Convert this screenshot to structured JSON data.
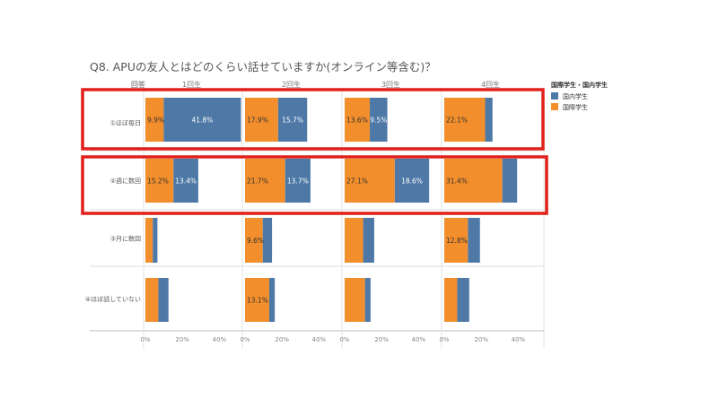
{
  "chart_data": {
    "type": "bar",
    "stacked": true,
    "orientation": "horizontal",
    "title": "Q8.  APUの友人とはどのくらい話せていますか(オンライン等含む)？",
    "row_header": "回答",
    "panels": [
      "1回生",
      "2回生",
      "3回生",
      "4回生"
    ],
    "categories": [
      "①ほぼ毎日",
      "②週に数回",
      "③月に数回",
      "④ほぼ話していない"
    ],
    "xlim": [
      0,
      50
    ],
    "x_ticks": [
      "0%",
      "20%",
      "40%"
    ],
    "x_tick_values": [
      0,
      20,
      40
    ],
    "legend": {
      "title": "国際学生・国内学生",
      "position": "top-right",
      "items": [
        {
          "name": "国内学生",
          "color": "#4e79a7"
        },
        {
          "name": "国際学生",
          "color": "#f28e2b"
        }
      ]
    },
    "series": [
      {
        "name": "国際学生",
        "color": "#f28e2b",
        "values": [
          [
            9.9,
            17.9,
            13.6,
            22.1
          ],
          [
            15.2,
            21.7,
            27.1,
            31.4
          ],
          [
            4.0,
            9.6,
            10.0,
            12.8
          ],
          [
            7.0,
            13.1,
            11.0,
            7.0
          ]
        ],
        "labels": [
          [
            "9.9%",
            "17.9%",
            "13.6%",
            "22.1%"
          ],
          [
            "15.2%",
            "21.7%",
            "27.1%",
            "31.4%"
          ],
          [
            "",
            "9.6%",
            "",
            "12.8%"
          ],
          [
            "",
            "13.1%",
            "",
            ""
          ]
        ]
      },
      {
        "name": "国内学生",
        "color": "#4e79a7",
        "values": [
          [
            41.8,
            15.7,
            9.5,
            4.0
          ],
          [
            13.4,
            13.7,
            18.6,
            8.0
          ],
          [
            2.5,
            5.0,
            6.0,
            6.5
          ],
          [
            5.5,
            3.0,
            3.0,
            6.5
          ]
        ],
        "labels": [
          [
            "41.8%",
            "15.7%",
            "9.5%",
            ""
          ],
          [
            "13.4%",
            "13.7%",
            "18.6%",
            ""
          ],
          [
            "",
            "",
            "",
            ""
          ],
          [
            "",
            "",
            "",
            ""
          ]
        ]
      }
    ],
    "highlight_rows": [
      0,
      1
    ],
    "highlight_color": "#e0211b"
  }
}
